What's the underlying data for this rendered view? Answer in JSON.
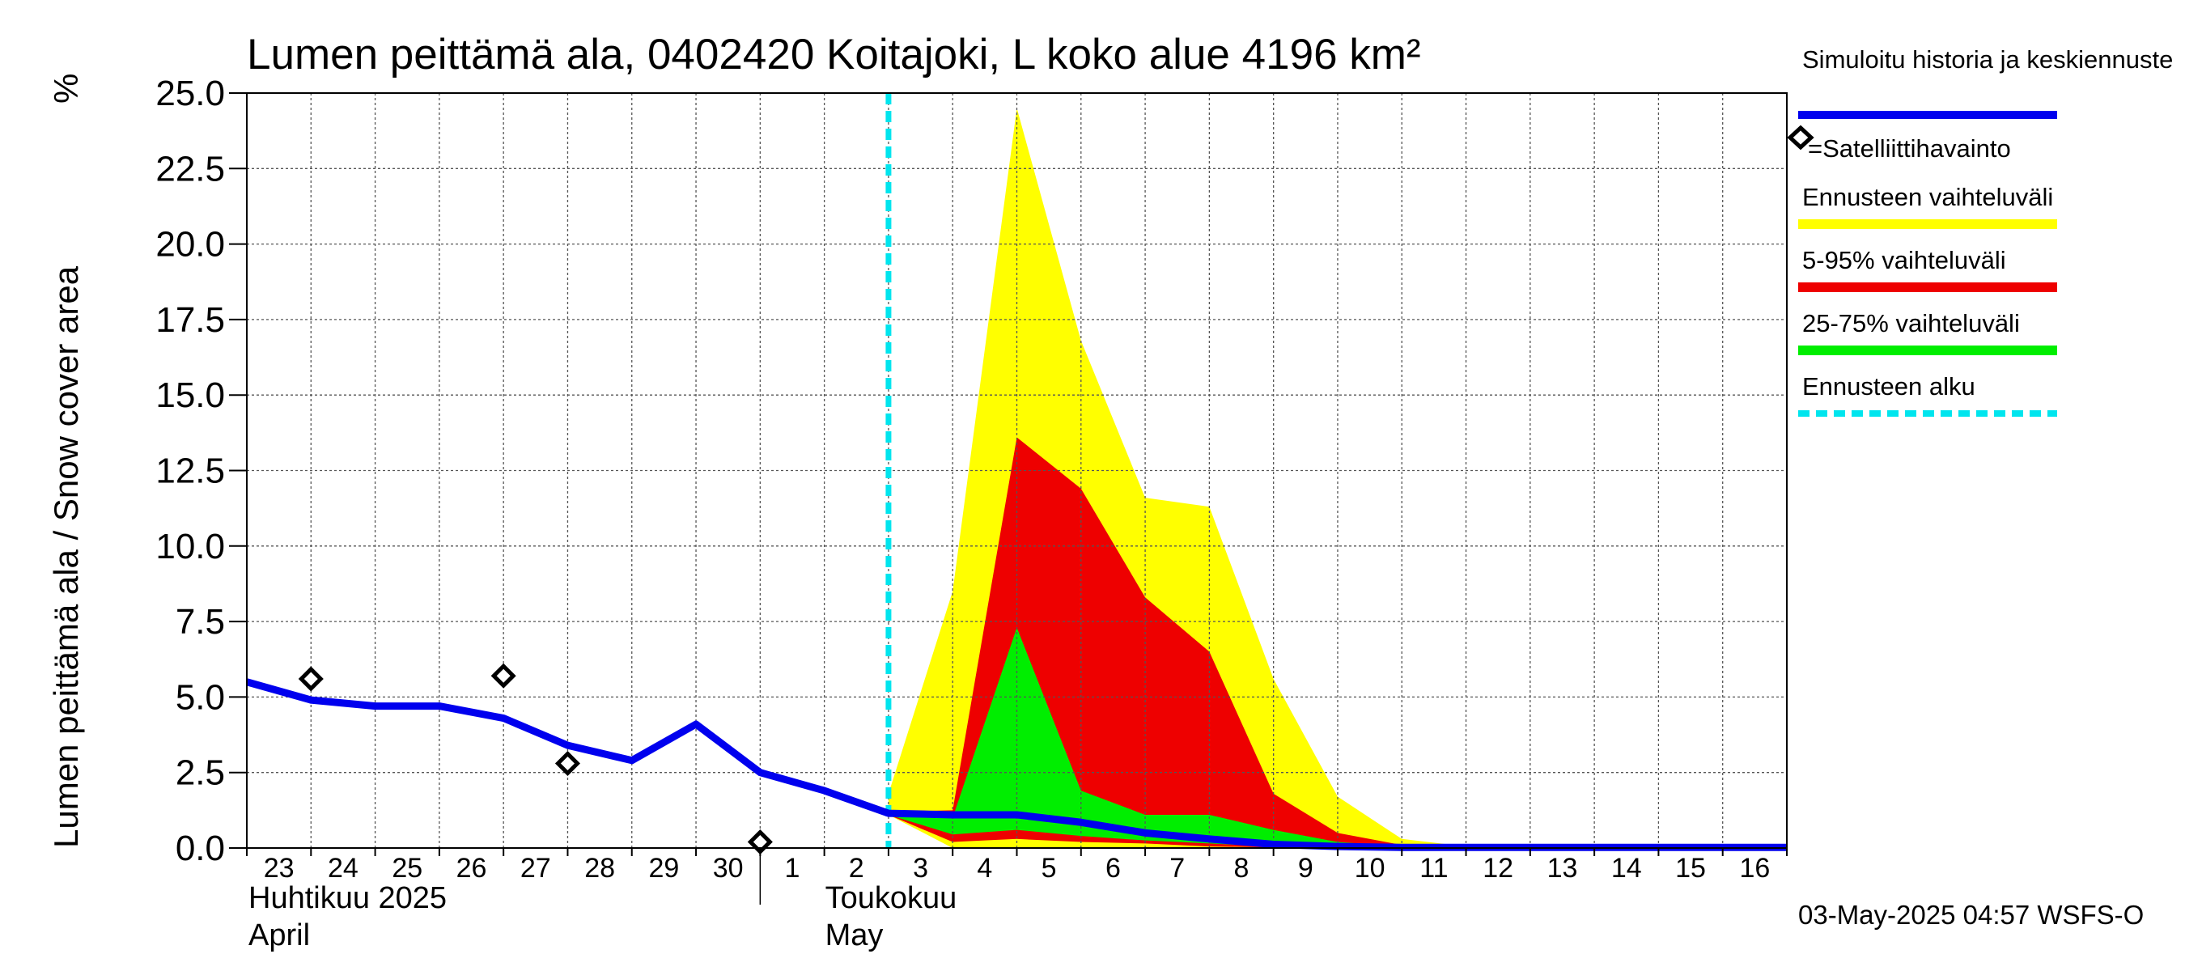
{
  "chart_data": {
    "type": "area",
    "title": "Lumen peittämä ala, 0402420 Koitajoki, L koko alue 4196 km²",
    "ylabel": "Lumen peittämä ala / Snow cover area",
    "yunit": "%",
    "ylim": [
      0,
      25
    ],
    "yticks": [
      "0.0",
      "2.5",
      "5.0",
      "7.5",
      "10.0",
      "12.5",
      "15.0",
      "17.5",
      "20.0",
      "22.5",
      "25.0"
    ],
    "ytick_values": [
      0,
      2.5,
      5,
      7.5,
      10,
      12.5,
      15,
      17.5,
      20,
      22.5,
      25
    ],
    "xlim": [
      "2025-04-23",
      "2025-05-17"
    ],
    "xtick_labels": [
      "23",
      "24",
      "25",
      "26",
      "27",
      "28",
      "29",
      "30",
      "1",
      "2",
      "3",
      "4",
      "5",
      "6",
      "7",
      "8",
      "9",
      "10",
      "11",
      "12",
      "13",
      "14",
      "15",
      "16"
    ],
    "month_labels": [
      {
        "fi": "Huhtikuu  2025",
        "en": "April"
      },
      {
        "fi": "Toukokuu",
        "en": "May"
      }
    ],
    "grid": true,
    "forecast_start": "2025-05-03",
    "series": [
      {
        "name": "Simuloitu historia ja keskiennuste",
        "kind": "line",
        "color": "#0000ee",
        "x": [
          "2025-04-23",
          "2025-04-24",
          "2025-04-25",
          "2025-04-26",
          "2025-04-27",
          "2025-04-28",
          "2025-04-29",
          "2025-04-30",
          "2025-05-01",
          "2025-05-02",
          "2025-05-03",
          "2025-05-04",
          "2025-05-05",
          "2025-05-06",
          "2025-05-07",
          "2025-05-08",
          "2025-05-09",
          "2025-05-10",
          "2025-05-11",
          "2025-05-12",
          "2025-05-13",
          "2025-05-14",
          "2025-05-15",
          "2025-05-16",
          "2025-05-17"
        ],
        "y": [
          5.5,
          4.9,
          4.7,
          4.7,
          4.3,
          3.4,
          2.9,
          4.1,
          2.5,
          1.9,
          1.15,
          1.1,
          1.1,
          0.85,
          0.5,
          0.3,
          0.12,
          0.05,
          0.02,
          0.02,
          0.02,
          0.02,
          0.02,
          0.02,
          0.02
        ]
      },
      {
        "name": "=Satelliittihavainto",
        "kind": "scatter",
        "x": [
          "2025-04-24",
          "2025-04-27",
          "2025-04-28",
          "2025-05-01"
        ],
        "y": [
          5.6,
          5.7,
          2.8,
          0.2
        ]
      },
      {
        "name": "Ennusteen vaihteluväli",
        "kind": "band",
        "color": "#ffff00",
        "x": [
          "2025-05-03",
          "2025-05-04",
          "2025-05-05",
          "2025-05-06",
          "2025-05-07",
          "2025-05-08",
          "2025-05-09",
          "2025-05-10",
          "2025-05-11",
          "2025-05-12",
          "2025-05-13"
        ],
        "low": [
          1.1,
          0,
          0,
          0,
          0,
          0,
          0,
          0,
          0,
          0,
          0
        ],
        "high": [
          1.8,
          8.5,
          24.5,
          16.8,
          11.6,
          11.3,
          5.6,
          1.7,
          0.3,
          0.05,
          0.02
        ]
      },
      {
        "name": "5-95% vaihteluväli",
        "kind": "band",
        "color": "#ee0000",
        "x": [
          "2025-05-03",
          "2025-05-04",
          "2025-05-05",
          "2025-05-06",
          "2025-05-07",
          "2025-05-08",
          "2025-05-09",
          "2025-05-10",
          "2025-05-11",
          "2025-05-12"
        ],
        "low": [
          1.1,
          0.2,
          0.3,
          0.2,
          0.15,
          0.05,
          0.02,
          0,
          0,
          0
        ],
        "high": [
          1.2,
          1.25,
          13.6,
          11.9,
          8.3,
          6.5,
          1.8,
          0.5,
          0.1,
          0.02
        ]
      },
      {
        "name": "25-75% vaihteluväli",
        "kind": "band",
        "color": "#00ee00",
        "x": [
          "2025-05-03",
          "2025-05-04",
          "2025-05-05",
          "2025-05-06",
          "2025-05-07",
          "2025-05-08",
          "2025-05-09",
          "2025-05-10",
          "2025-05-11"
        ],
        "low": [
          1.1,
          0.45,
          0.6,
          0.4,
          0.25,
          0.15,
          0.05,
          0.02,
          0
        ],
        "high": [
          1.15,
          1.0,
          7.3,
          1.9,
          1.1,
          1.1,
          0.6,
          0.2,
          0.05
        ]
      },
      {
        "name": "Ennusteen alku",
        "kind": "vline",
        "color": "#00e5ee",
        "x": "2025-05-03"
      }
    ],
    "timestamp": "03-May-2025 04:57 WSFS-O"
  }
}
